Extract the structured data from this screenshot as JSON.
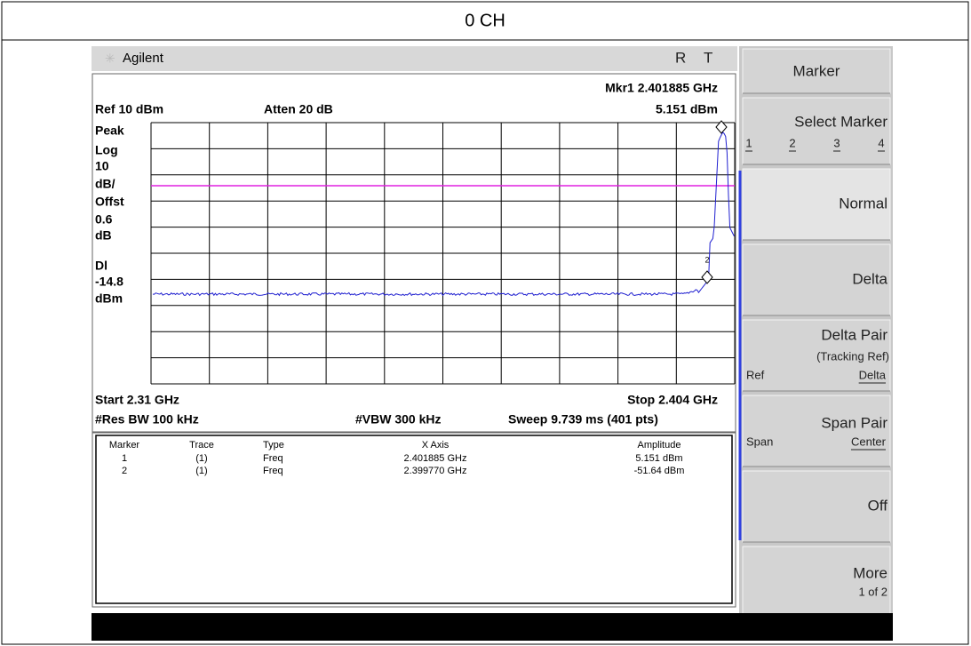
{
  "header": {
    "title": "0 CH"
  },
  "instrument": {
    "brand": "Agilent",
    "status": [
      "R",
      "T"
    ]
  },
  "screen": {
    "marker_readout": "Mkr1 2.401885 GHz",
    "marker_amplitude": "5.151 dBm",
    "ref": "Ref 10 dBm",
    "atten": "Atten 20 dB",
    "left_labels": [
      "Peak",
      "Log",
      "10",
      "dB/",
      "Offst",
      "0.6",
      "dB",
      "Dl",
      "-14.8",
      "dBm"
    ],
    "start": "Start 2.31 GHz",
    "stop": "Stop 2.404 GHz",
    "res_bw": "#Res BW 100 kHz",
    "vbw": "#VBW 300 kHz",
    "sweep": "Sweep 9.739 ms (401 pts)",
    "marker_tag": "2"
  },
  "table": {
    "columns": [
      "Marker",
      "Trace",
      "Type",
      "X Axis",
      "Amplitude"
    ],
    "rows": [
      [
        "1",
        "(1)",
        "Freq",
        "2.401885 GHz",
        "5.151 dBm"
      ],
      [
        "2",
        "(1)",
        "Freq",
        "2.399770 GHz",
        "-51.64 dBm"
      ]
    ]
  },
  "softkeys": [
    {
      "label": "Marker"
    },
    {
      "label": "Select Marker",
      "options": [
        "1",
        "2",
        "3",
        "4"
      ]
    },
    {
      "label": "Normal"
    },
    {
      "label": "Delta"
    },
    {
      "label": "Delta Pair",
      "sub": "(Tracking Ref)",
      "left": "Ref",
      "right": "Delta"
    },
    {
      "label": "Span Pair",
      "left": "Span",
      "right": "Center"
    },
    {
      "label": "Off"
    },
    {
      "label": "More",
      "sub": "1 of 2"
    }
  ]
}
